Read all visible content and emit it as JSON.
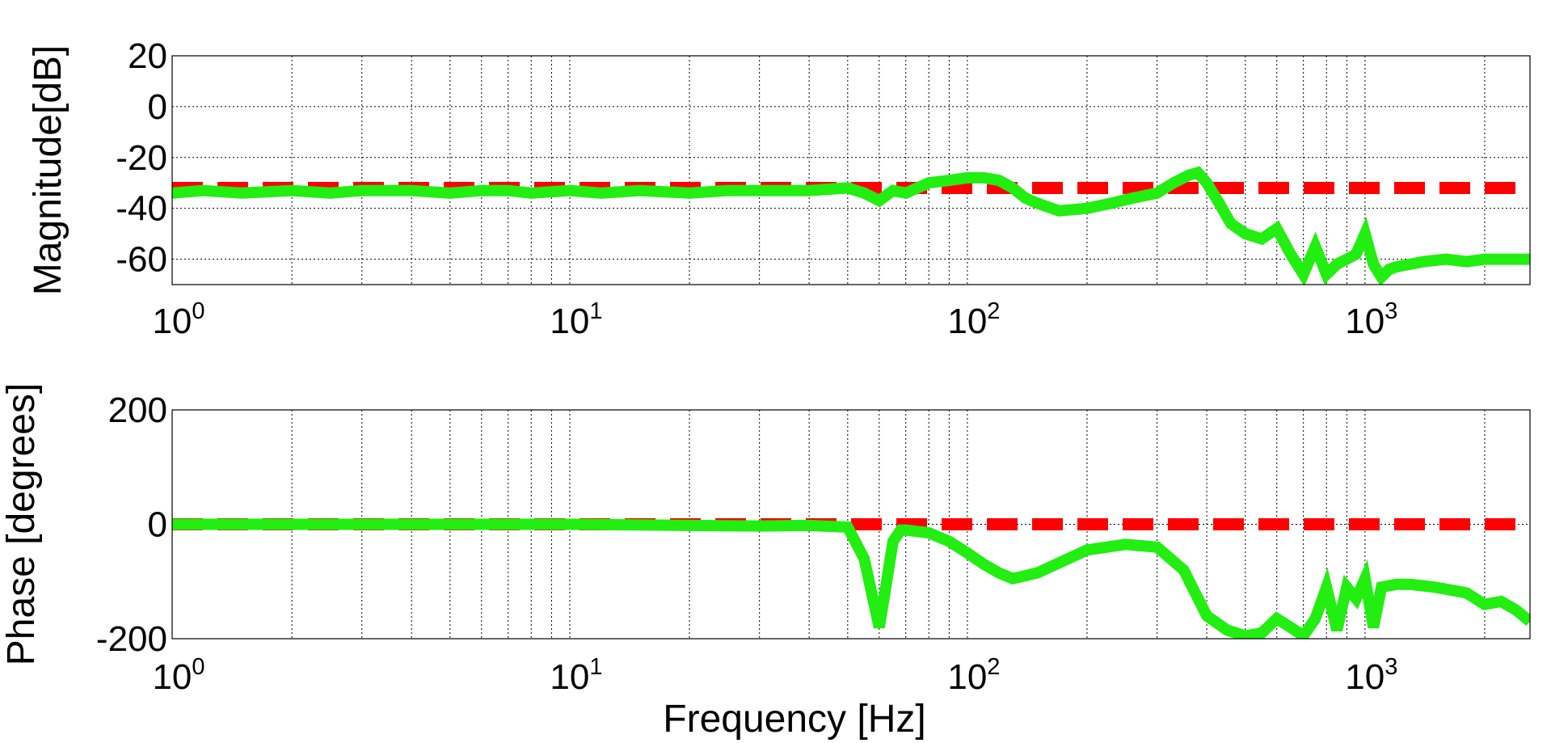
{
  "chart_data": [
    {
      "type": "line",
      "ylabel": "Magnitude[dB]",
      "xscale": "log",
      "xlim": [
        1,
        2600
      ],
      "ylim": [
        -70,
        20
      ],
      "yticks": [
        20,
        0,
        -20,
        -40,
        -60
      ],
      "xticks": [
        {
          "base": "10",
          "exp": "0"
        },
        {
          "base": "10",
          "exp": "1"
        },
        {
          "base": "10",
          "exp": "2"
        },
        {
          "base": "10",
          "exp": "3"
        }
      ],
      "grid": true,
      "series": [
        {
          "color": "#22ee11",
          "x": [
            1,
            1.2,
            1.5,
            2,
            2.5,
            3,
            4,
            5,
            6,
            7,
            8,
            10,
            12,
            15,
            20,
            25,
            30,
            40,
            50,
            55,
            60,
            65,
            70,
            80,
            90,
            100,
            110,
            120,
            130,
            140,
            150,
            170,
            200,
            230,
            260,
            300,
            330,
            360,
            380,
            400,
            430,
            460,
            500,
            550,
            600,
            650,
            700,
            750,
            800,
            850,
            900,
            950,
            1000,
            1050,
            1100,
            1150,
            1200,
            1300,
            1400,
            1600,
            1800,
            2000,
            2300,
            2600
          ],
          "y": [
            -34,
            -33,
            -34,
            -33,
            -34,
            -33,
            -33,
            -34,
            -33,
            -33,
            -34,
            -33,
            -34,
            -33,
            -34,
            -33,
            -33,
            -33,
            -32,
            -34,
            -37,
            -33,
            -34,
            -30,
            -29,
            -28,
            -28,
            -29,
            -32,
            -36,
            -38,
            -41,
            -40,
            -38,
            -36,
            -34,
            -30,
            -27,
            -26,
            -30,
            -38,
            -46,
            -50,
            -52,
            -48,
            -58,
            -66,
            -55,
            -66,
            -62,
            -60,
            -58,
            -50,
            -62,
            -67,
            -64,
            -63,
            -62,
            -61,
            -60,
            -61,
            -60,
            -60,
            -60
          ]
        },
        {
          "color": "#ff0000",
          "x": [
            1,
            2600
          ],
          "y": [
            -32,
            -32
          ]
        }
      ]
    },
    {
      "type": "line",
      "xlabel": "Frequency [Hz]",
      "ylabel": "Phase [degrees]",
      "xscale": "log",
      "xlim": [
        1,
        2600
      ],
      "ylim": [
        -200,
        200
      ],
      "yticks": [
        200,
        0,
        -200
      ],
      "xticks": [
        {
          "base": "10",
          "exp": "0"
        },
        {
          "base": "10",
          "exp": "1"
        },
        {
          "base": "10",
          "exp": "2"
        },
        {
          "base": "10",
          "exp": "3"
        }
      ],
      "grid": true,
      "series": [
        {
          "color": "#22ee11",
          "x": [
            1,
            2,
            5,
            10,
            20,
            30,
            40,
            50,
            55,
            60,
            62,
            65,
            68,
            70,
            80,
            90,
            100,
            110,
            120,
            130,
            150,
            200,
            250,
            300,
            350,
            400,
            450,
            500,
            550,
            600,
            650,
            700,
            750,
            800,
            850,
            900,
            950,
            1000,
            1050,
            1100,
            1200,
            1300,
            1500,
            1800,
            2000,
            2200,
            2400,
            2600
          ],
          "y": [
            0,
            0,
            0,
            0,
            -2,
            -3,
            -2,
            -5,
            -60,
            -180,
            -120,
            -30,
            -10,
            -10,
            -15,
            -30,
            -50,
            -70,
            -85,
            -95,
            -85,
            -45,
            -35,
            -40,
            -80,
            -160,
            -185,
            -195,
            -190,
            -165,
            -180,
            -195,
            -165,
            -110,
            -185,
            -110,
            -130,
            -95,
            -180,
            -110,
            -105,
            -105,
            -110,
            -120,
            -140,
            -135,
            -150,
            -170
          ]
        },
        {
          "color": "#ff0000",
          "x": [
            1,
            2600
          ],
          "y": [
            0,
            0
          ]
        }
      ]
    }
  ]
}
